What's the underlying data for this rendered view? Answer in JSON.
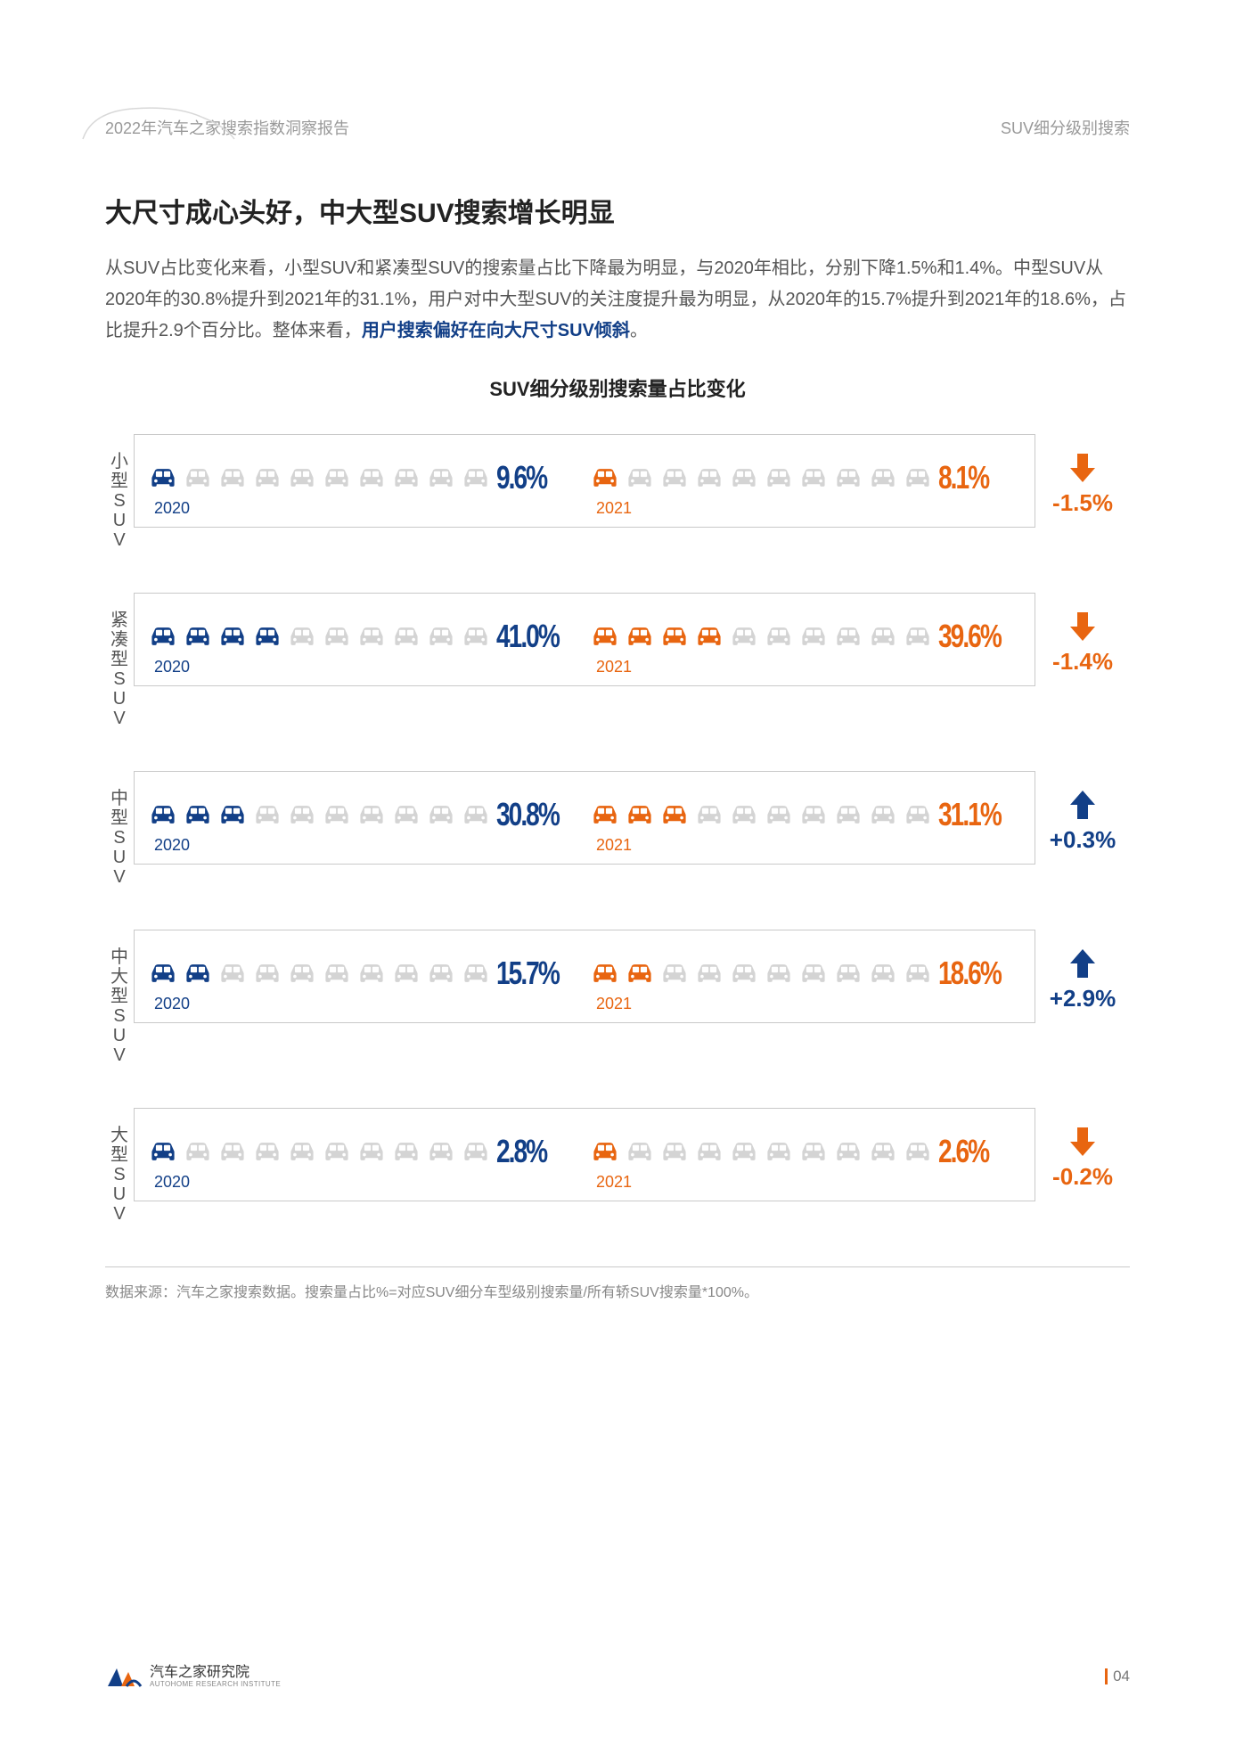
{
  "header": {
    "left": "2022年汽车之家搜索指数洞察报告",
    "right": "SUV细分级别搜索"
  },
  "title": "大尺寸成心头好，中大型SUV搜索增长明显",
  "body_pre": "从SUV占比变化来看，小型SUV和紧凑型SUV的搜索量占比下降最为明显，与2020年相比，分别下降1.5%和1.4%。中型SUV从2020年的30.8%提升到2021年的31.1%，用户对中大型SUV的关注度提升最为明显，从2020年的15.7%提升到2021年的18.6%，占比提升2.9个百分比。整体来看，",
  "body_hl": "用户搜索偏好在向大尺寸SUV倾斜",
  "body_post": "。",
  "chart_title": "SUV细分级别搜索量占比变化",
  "colors": {
    "blue": "#123f87",
    "orange": "#e86510",
    "grey": "#d4d4d4",
    "change_up": "#123f87",
    "change_down": "#e86510"
  },
  "year_2020": "2020",
  "year_2021": "2021",
  "total_icons": 10,
  "rows": [
    {
      "label": "小型SUV",
      "v2020": "9.6%",
      "fill2020": 1,
      "v2021": "8.1%",
      "fill2021": 1,
      "change": "-1.5%",
      "dir": "down"
    },
    {
      "label": "紧凑型SUV",
      "v2020": "41.0%",
      "fill2020": 4,
      "v2021": "39.6%",
      "fill2021": 4,
      "change": "-1.4%",
      "dir": "down"
    },
    {
      "label": "中型SUV",
      "v2020": "30.8%",
      "fill2020": 3,
      "v2021": "31.1%",
      "fill2021": 3,
      "change": "+0.3%",
      "dir": "up"
    },
    {
      "label": "中大型SUV",
      "v2020": "15.7%",
      "fill2020": 2,
      "v2021": "18.6%",
      "fill2021": 2,
      "change": "+2.9%",
      "dir": "up"
    },
    {
      "label": "大型SUV",
      "v2020": "2.8%",
      "fill2020": 1,
      "v2021": "2.6%",
      "fill2021": 1,
      "change": "-0.2%",
      "dir": "down"
    }
  ],
  "footnote": "数据来源：汽车之家搜索数据。搜索量占比%=对应SUV细分车型级别搜索量/所有轿SUV搜索量*100%。",
  "footer": {
    "brand": "汽车之家研究院",
    "brand_sub": "AUTOHOME RESEARCH INSTITUTE",
    "page": "04"
  }
}
